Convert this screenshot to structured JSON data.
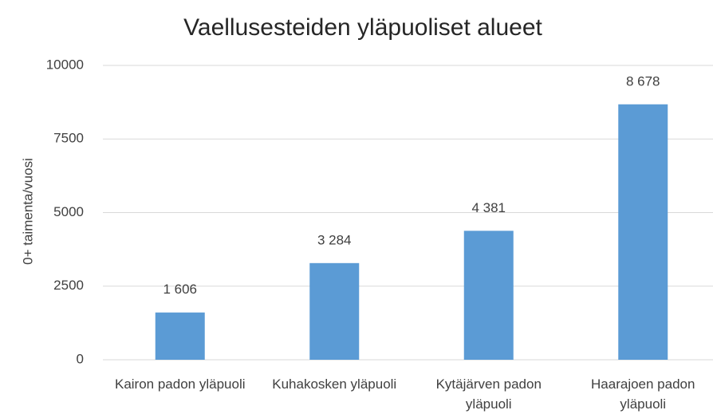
{
  "chart_data": {
    "type": "bar",
    "title": "Vaellusesteiden yläpuoliset alueet",
    "y_label": "0+ taimenta/vuosi",
    "categories": [
      "Kairon padon yläpuoli",
      "Kuhakosken yläpuoli",
      "Kytäjärven padon yläpuoli",
      "Haarajoen padon yläpuoli"
    ],
    "values": [
      1606,
      3284,
      4381,
      8678
    ],
    "value_labels": [
      "1 606",
      "3 284",
      "4 381",
      "8 678"
    ],
    "color": "#5b9bd5",
    "ylim": [
      0,
      10000
    ],
    "yticks": [
      0,
      2500,
      5000,
      7500,
      10000
    ],
    "grid": true
  }
}
